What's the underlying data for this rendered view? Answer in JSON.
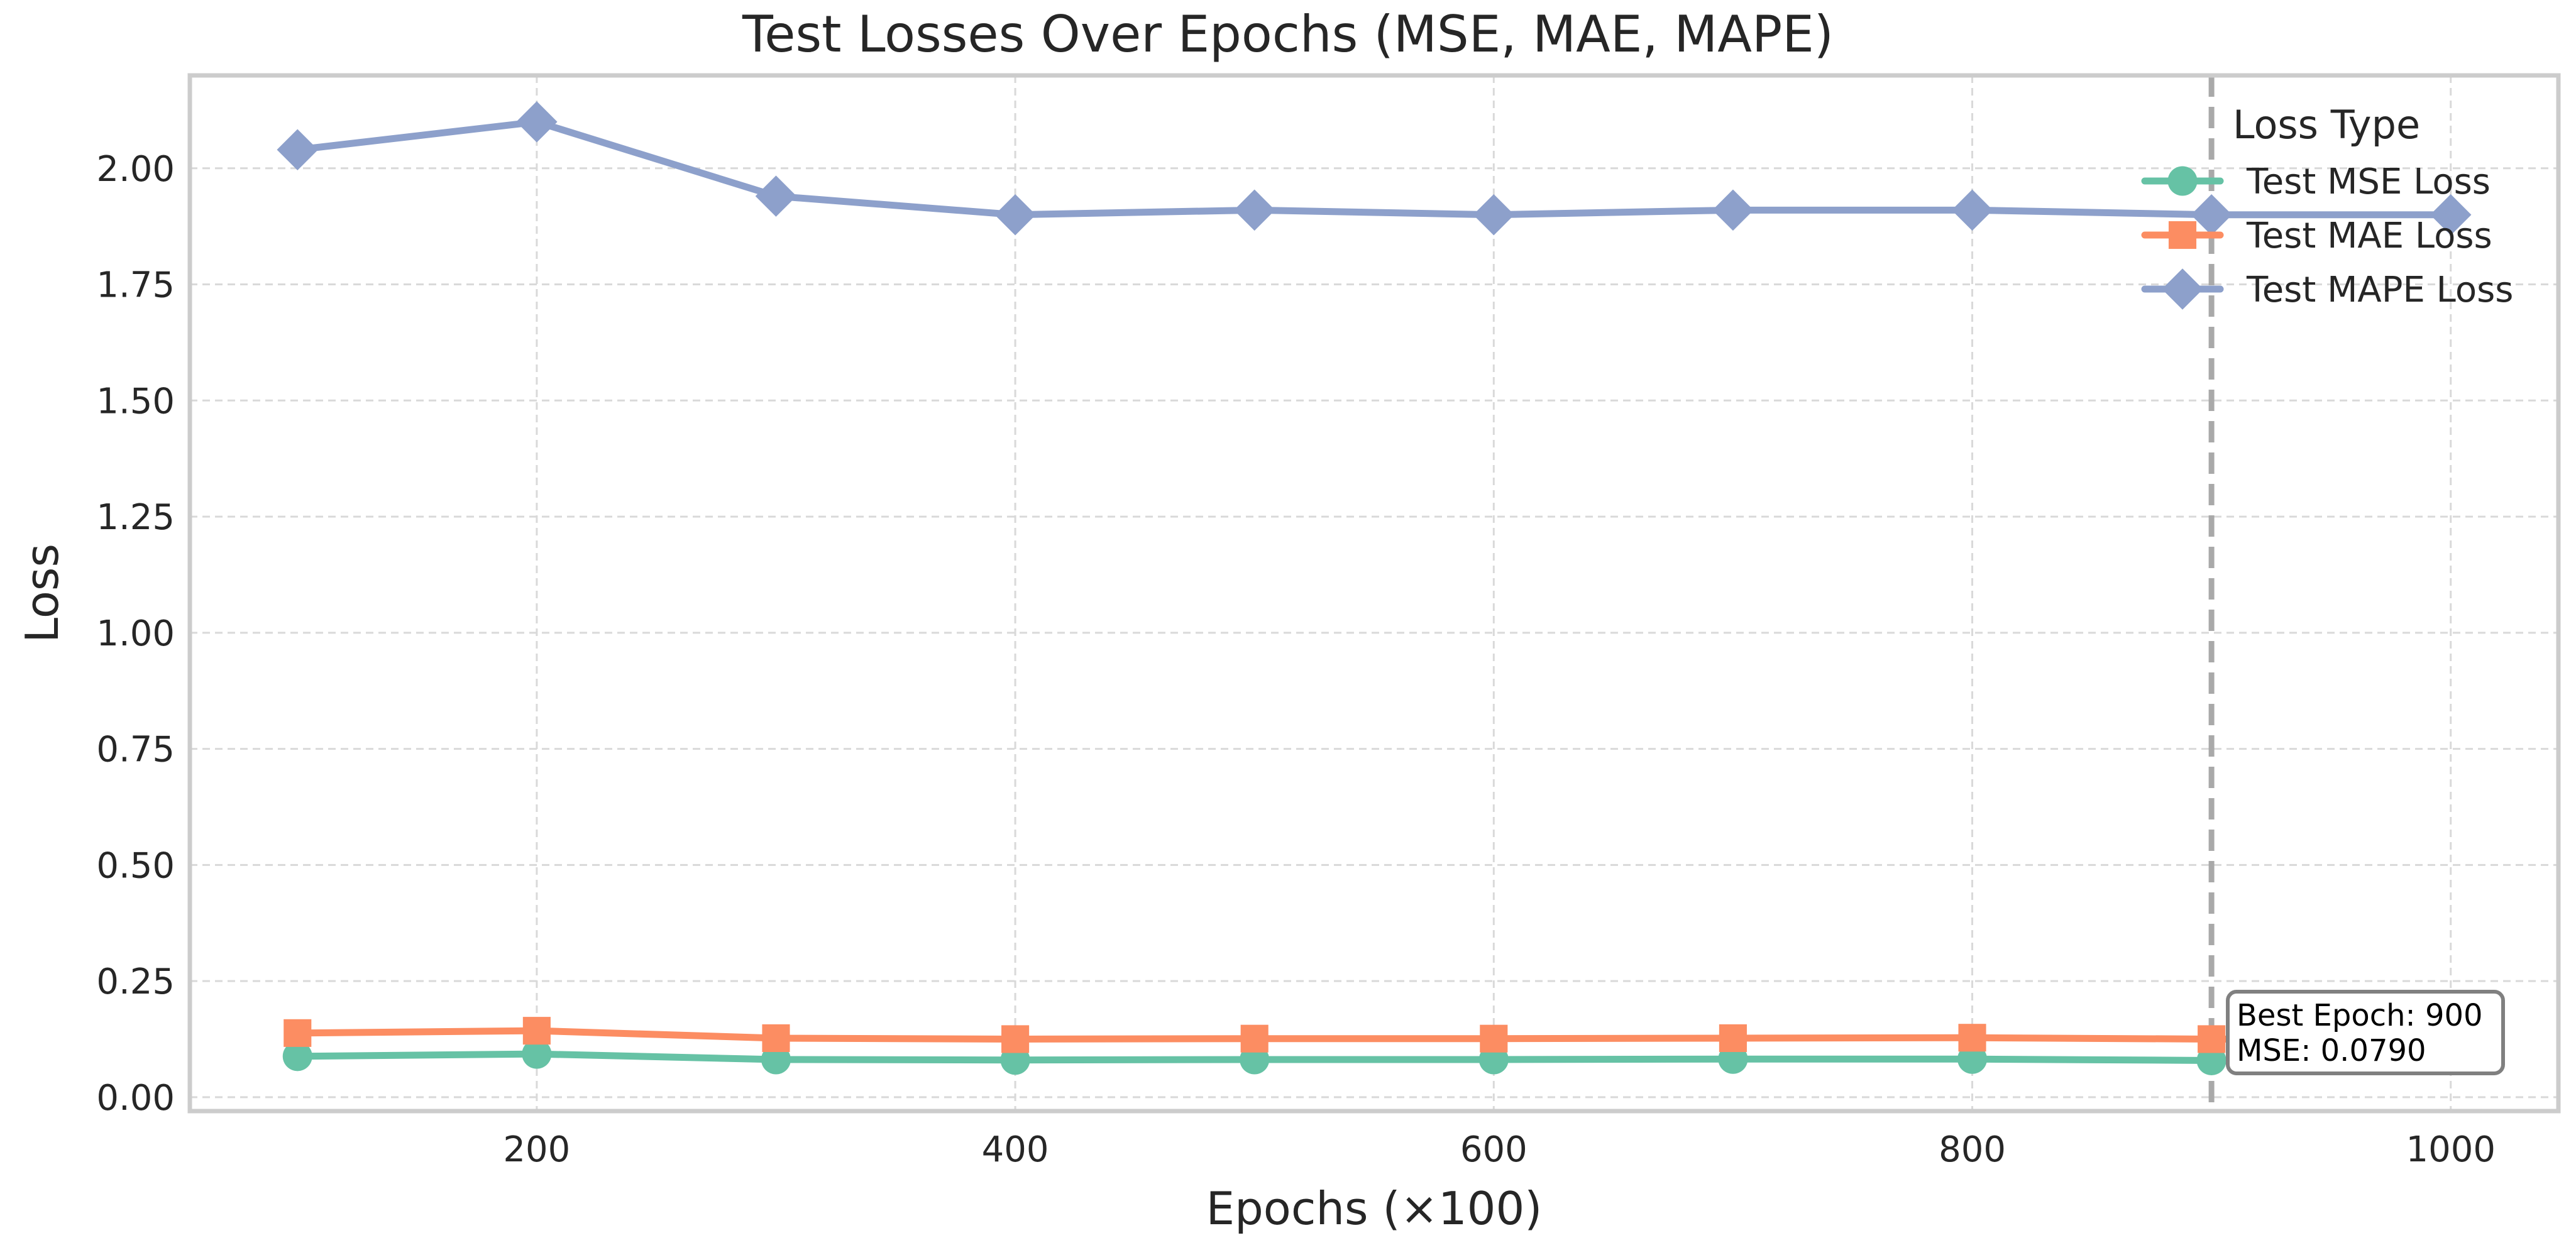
{
  "chart_data": {
    "type": "line",
    "title": "Test Losses Over Epochs (MSE, MAE, MAPE)",
    "xlabel": "Epochs (×100)",
    "ylabel": "Loss",
    "xlim": [
      55,
      1045
    ],
    "ylim": [
      -0.03,
      2.2
    ],
    "x_ticks": [
      200,
      400,
      600,
      800,
      1000
    ],
    "y_ticks": [
      0.0,
      0.25,
      0.5,
      0.75,
      1.0,
      1.25,
      1.5,
      1.75,
      2.0
    ],
    "x_tick_labels": [
      "200",
      "400",
      "600",
      "800",
      "1000"
    ],
    "y_tick_labels": [
      "0.00",
      "0.25",
      "0.50",
      "0.75",
      "1.00",
      "1.25",
      "1.50",
      "1.75",
      "2.00"
    ],
    "grid": true,
    "x": [
      100,
      200,
      300,
      400,
      500,
      600,
      700,
      800,
      900,
      1000
    ],
    "series": [
      {
        "name": "Test MSE Loss",
        "color": "#66c2a5",
        "marker": "circle",
        "values": [
          0.088,
          0.093,
          0.081,
          0.08,
          0.081,
          0.081,
          0.082,
          0.082,
          0.079,
          0.08
        ]
      },
      {
        "name": "Test MAE Loss",
        "color": "#fc8d62",
        "marker": "square",
        "values": [
          0.138,
          0.143,
          0.127,
          0.125,
          0.126,
          0.126,
          0.127,
          0.128,
          0.125,
          0.125
        ]
      },
      {
        "name": "Test MAPE Loss",
        "color": "#8da0cb",
        "marker": "diamond",
        "values": [
          2.04,
          2.1,
          1.94,
          1.9,
          1.91,
          1.9,
          1.91,
          1.91,
          1.9,
          1.9
        ]
      }
    ],
    "legend": {
      "title": "Loss Type",
      "placement": "top-right"
    },
    "best_marker": {
      "epoch": 900,
      "line_color": "#a9a9a9",
      "annotation_lines": [
        "Best Epoch: 900",
        "MSE: 0.0790"
      ]
    }
  }
}
